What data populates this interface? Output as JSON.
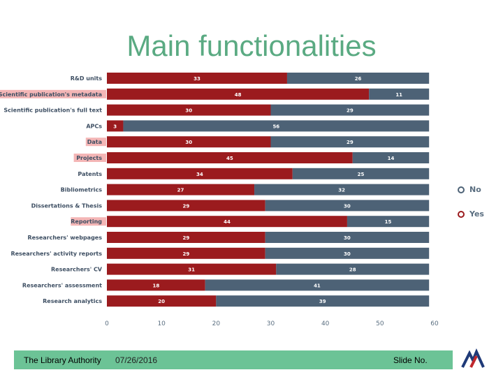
{
  "slide": {
    "title": "Main functionalities",
    "footer_org": "The Library Authority",
    "footer_date": "07/26/2016",
    "footer_slide_no": "Slide No."
  },
  "colors": {
    "yes": "#9b1b1e",
    "no": "#4d6276",
    "highlight": "#f4b6b6",
    "title": "#5aaa82",
    "footer": "#6cc396"
  },
  "chart_data": {
    "type": "bar",
    "orientation": "horizontal",
    "stacked": true,
    "title": "",
    "xlabel": "",
    "ylabel": "",
    "xlim": [
      0,
      60
    ],
    "xticks": [
      0,
      10,
      20,
      30,
      40,
      50,
      60
    ],
    "categories": [
      "R&D units",
      "Scientific publication's metadata",
      "Scientific publication's full text",
      "APCs",
      "Data",
      "Projects",
      "Patents",
      "Bibliometrics",
      "Dissertations & Thesis",
      "Reporting",
      "Researchers' webpages",
      "Researchers' activity reports",
      "Researchers' CV",
      "Researchers' assessment",
      "Research analytics"
    ],
    "highlighted": [
      "Scientific publication's metadata",
      "Data",
      "Projects",
      "Reporting"
    ],
    "series": [
      {
        "name": "Yes",
        "values": [
          33,
          48,
          30,
          3,
          30,
          45,
          34,
          27,
          29,
          44,
          29,
          29,
          31,
          18,
          20
        ]
      },
      {
        "name": "No",
        "values": [
          26,
          11,
          29,
          56,
          29,
          14,
          25,
          32,
          30,
          15,
          30,
          30,
          28,
          41,
          39
        ]
      }
    ],
    "legend": {
      "position": "right",
      "entries": [
        "No",
        "Yes"
      ]
    },
    "grid": false
  }
}
